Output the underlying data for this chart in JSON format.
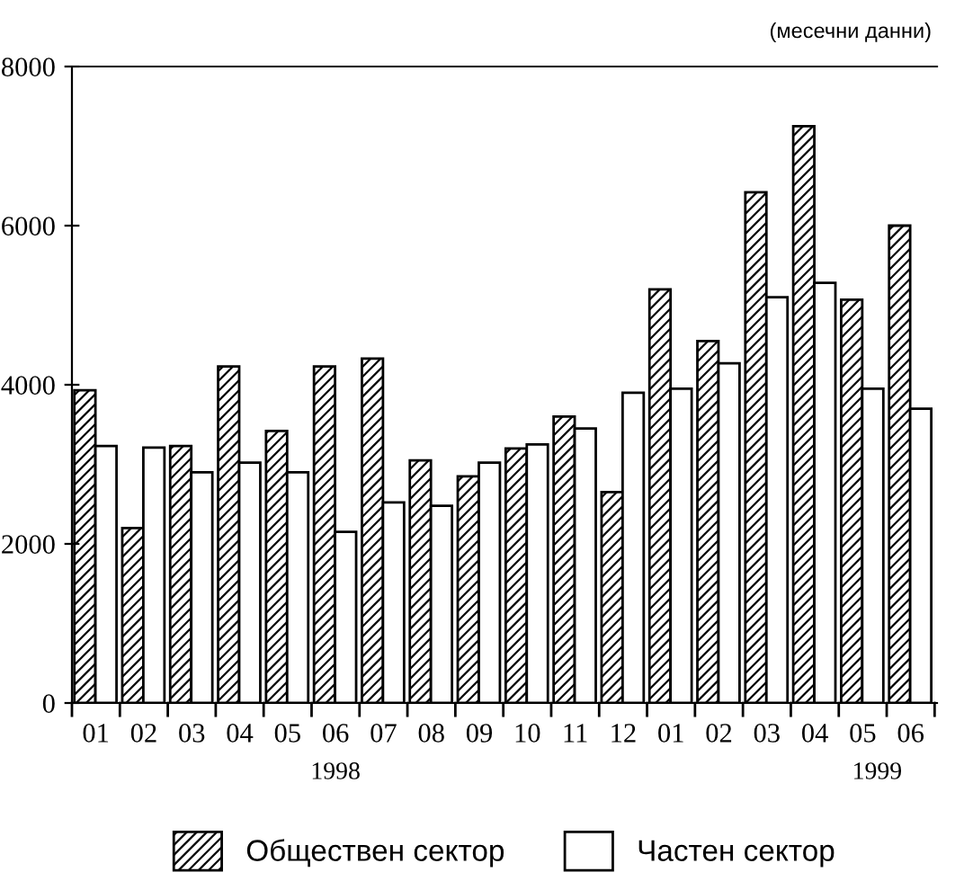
{
  "chart_data": {
    "type": "bar",
    "categories": [
      "01",
      "02",
      "03",
      "04",
      "05",
      "06",
      "07",
      "08",
      "09",
      "10",
      "11",
      "12",
      "01",
      "02",
      "03",
      "04",
      "05",
      "06"
    ],
    "series": [
      {
        "name": "Обществен сектор",
        "color": "#000000",
        "values": [
          3930,
          2200,
          3230,
          4230,
          3420,
          4230,
          4330,
          3050,
          2850,
          3200,
          3600,
          2650,
          5200,
          4550,
          6420,
          7250,
          5070,
          6000
        ]
      },
      {
        "name": "Частен сектор",
        "color": "#ffffff",
        "values": [
          3230,
          3210,
          2900,
          3020,
          2900,
          2150,
          2520,
          2480,
          3020,
          3250,
          3450,
          3900,
          3950,
          4270,
          5100,
          5280,
          3950,
          3700
        ]
      }
    ],
    "ylim": [
      0,
      8000
    ],
    "yticks": [
      0,
      2000,
      4000,
      6000,
      8000
    ],
    "annotations": [
      "(месечни данни)",
      "1998",
      "1999"
    ],
    "grid": false,
    "legend": "bottom"
  }
}
